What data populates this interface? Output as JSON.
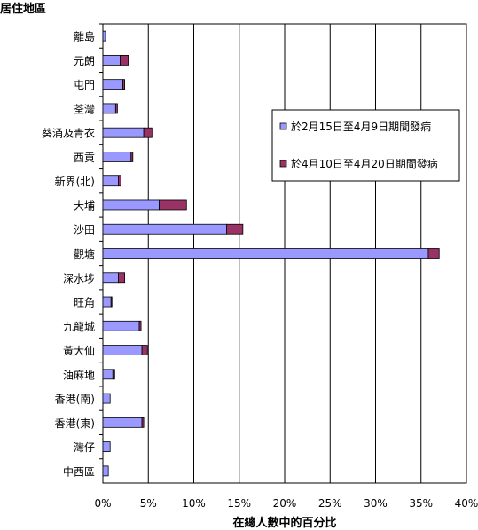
{
  "chart_data": {
    "type": "bar",
    "orientation": "horizontal",
    "stacked": true,
    "title": "",
    "ylabel": "居住地區",
    "xlabel": "在總人數中的百分比",
    "xlim": [
      0,
      40
    ],
    "x_ticks": [
      "0%",
      "5%",
      "10%",
      "15%",
      "20%",
      "25%",
      "30%",
      "35%",
      "40%"
    ],
    "grid": "vertical",
    "legend": "top-right",
    "categories": [
      "離島",
      "元朗",
      "屯門",
      "荃灣",
      "葵涌及青衣",
      "西貢",
      "新界(北)",
      "大埔",
      "沙田",
      "觀塘",
      "深水埗",
      "旺角",
      "九龍城",
      "黃大仙",
      "油麻地",
      "香港(南)",
      "香港(東)",
      "灣仔",
      "中西區"
    ],
    "series": [
      {
        "name": "於2月15日至4月9日期間發病",
        "color": "#9999ff",
        "values": [
          0.3,
          1.9,
          2.2,
          1.4,
          4.5,
          3.1,
          1.7,
          6.2,
          13.6,
          35.8,
          1.7,
          0.9,
          4.0,
          4.3,
          1.1,
          0.8,
          4.3,
          0.8,
          0.6
        ]
      },
      {
        "name": "於4月10日至4月20日期間發病",
        "color": "#993366",
        "values": [
          0.0,
          0.9,
          0.2,
          0.2,
          0.9,
          0.2,
          0.3,
          3.0,
          1.8,
          1.2,
          0.7,
          0.1,
          0.2,
          0.6,
          0.2,
          0.0,
          0.2,
          0.0,
          0.0
        ]
      }
    ]
  }
}
